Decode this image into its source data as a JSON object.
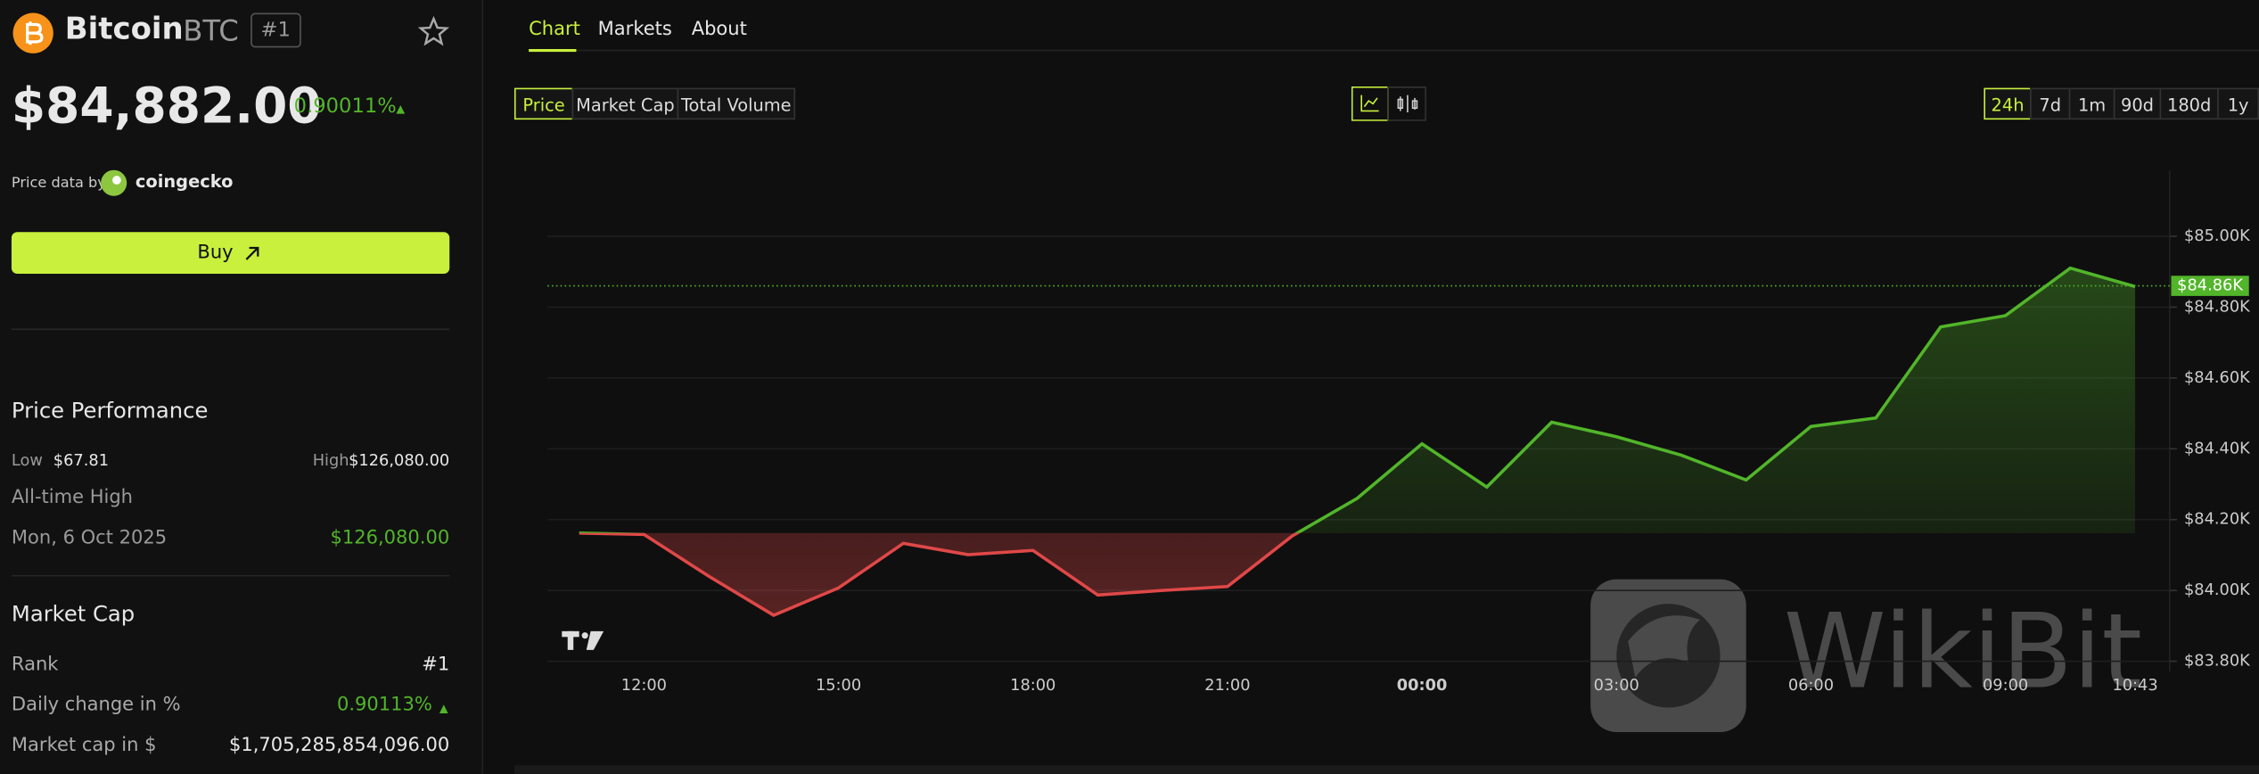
{
  "asset": {
    "name": "Bitcoin",
    "symbol": "BTC",
    "rank": "#1",
    "price": "$84,882.00",
    "change": "0.90011%",
    "source_prefix": "Price data by",
    "source": "coingecko",
    "buy": "Buy"
  },
  "performance": {
    "title": "Price Performance",
    "low_label": "Low",
    "low": "$67.81",
    "high_label": "High",
    "high": "$126,080.00",
    "ath_label": "All-time High",
    "ath_date": "Mon, 6 Oct 2025",
    "ath_value": "$126,080.00"
  },
  "market_cap": {
    "title": "Market Cap",
    "rows": [
      [
        "Rank",
        "#1"
      ],
      [
        "Daily change in %",
        "0.90113%"
      ],
      [
        "Market cap in $",
        "$1,705,285,854,096.00"
      ]
    ]
  },
  "tabs": [
    "Chart",
    "Markets",
    "About"
  ],
  "metrics": [
    "Price",
    "Market Cap",
    "Total Volume"
  ],
  "ranges": [
    "24h",
    "7d",
    "1m",
    "90d",
    "180d",
    "1y"
  ],
  "watermark": "WikiBit",
  "chart_data": {
    "type": "line",
    "categories": [
      null,
      "12:00",
      null,
      null,
      "15:00",
      null,
      null,
      "18:00",
      null,
      null,
      "21:00",
      null,
      null,
      "00:00",
      null,
      null,
      "03:00",
      null,
      null,
      "06:00",
      null,
      null,
      "09:00",
      null,
      "10:43"
    ],
    "values": [
      84162,
      84158,
      84040,
      83930,
      84007,
      84133,
      84101,
      84113,
      83987,
      84000,
      84011,
      84154,
      84260,
      84414,
      84292,
      84475,
      84434,
      84382,
      84312,
      84463,
      84487,
      84744,
      84776,
      84910,
      84858
    ],
    "up_color": "#52b52a",
    "down_color": "#e04848",
    "ylim": [
      83771,
      85187
    ],
    "yticks": [
      {
        "value": 83800,
        "label": "$83.80K"
      },
      {
        "value": 84000,
        "label": "$84.00K"
      },
      {
        "value": 84200,
        "label": "$84.20K"
      },
      {
        "value": 84400,
        "label": "$84.40K"
      },
      {
        "value": 84600,
        "label": "$84.60K"
      },
      {
        "value": 84800,
        "label": "$84.80K"
      },
      {
        "value": 85000,
        "label": "$85.00K"
      }
    ],
    "grid": true,
    "last_price": {
      "value": 84860,
      "label": "$84.86K"
    }
  }
}
